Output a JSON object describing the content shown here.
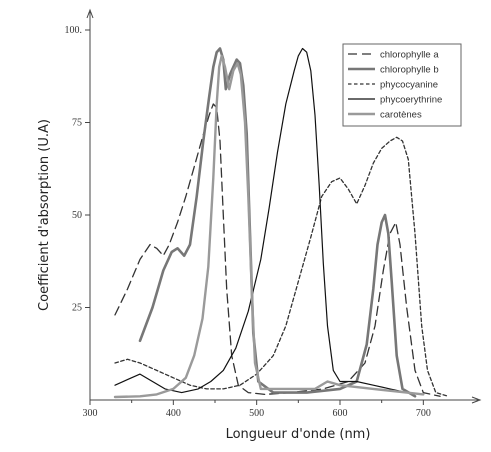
{
  "chart_data": {
    "type": "line",
    "title": "",
    "xlabel": "Longueur d'onde (nm)",
    "ylabel": "Coefficient d'absorption (U.A)",
    "xlim": [
      300,
      750
    ],
    "ylim": [
      0,
      100
    ],
    "xticks": [
      300,
      400,
      500,
      600,
      700
    ],
    "yticks": [
      25,
      50,
      75,
      100
    ],
    "xtick_labels": [
      "300",
      "400",
      "500",
      "600",
      "700"
    ],
    "ytick_labels": [
      "25",
      "50",
      "75",
      "100."
    ],
    "grid": false,
    "legend_position": "top-right",
    "series": [
      {
        "name": "chlorophylle a",
        "style": "long-dash",
        "color": "#333333",
        "points": [
          [
            330,
            23
          ],
          [
            345,
            30
          ],
          [
            360,
            38
          ],
          [
            372,
            42
          ],
          [
            380,
            41
          ],
          [
            388,
            39
          ],
          [
            395,
            42
          ],
          [
            405,
            48
          ],
          [
            415,
            55
          ],
          [
            425,
            63
          ],
          [
            435,
            71
          ],
          [
            443,
            77
          ],
          [
            448,
            80
          ],
          [
            452,
            79
          ],
          [
            456,
            70
          ],
          [
            460,
            50
          ],
          [
            464,
            30
          ],
          [
            470,
            12
          ],
          [
            478,
            4
          ],
          [
            490,
            2
          ],
          [
            510,
            1.5
          ],
          [
            540,
            2
          ],
          [
            580,
            3
          ],
          [
            610,
            5
          ],
          [
            630,
            10
          ],
          [
            642,
            20
          ],
          [
            652,
            35
          ],
          [
            660,
            45
          ],
          [
            667,
            48
          ],
          [
            672,
            42
          ],
          [
            680,
            25
          ],
          [
            690,
            8
          ],
          [
            700,
            2
          ],
          [
            720,
            1
          ]
        ]
      },
      {
        "name": "chlorophylle b",
        "style": "solid-thick",
        "color": "#777777",
        "points": [
          [
            360,
            16
          ],
          [
            375,
            25
          ],
          [
            388,
            35
          ],
          [
            398,
            40
          ],
          [
            405,
            41
          ],
          [
            413,
            39
          ],
          [
            420,
            42
          ],
          [
            428,
            55
          ],
          [
            436,
            70
          ],
          [
            443,
            82
          ],
          [
            448,
            90
          ],
          [
            452,
            94
          ],
          [
            456,
            95
          ],
          [
            460,
            92
          ],
          [
            463,
            84
          ],
          [
            468,
            88
          ],
          [
            472,
            90
          ],
          [
            476,
            92
          ],
          [
            480,
            91
          ],
          [
            484,
            85
          ],
          [
            488,
            72
          ],
          [
            492,
            45
          ],
          [
            496,
            18
          ],
          [
            502,
            5
          ],
          [
            520,
            2
          ],
          [
            560,
            2
          ],
          [
            600,
            3
          ],
          [
            620,
            5
          ],
          [
            632,
            15
          ],
          [
            640,
            30
          ],
          [
            645,
            42
          ],
          [
            650,
            48
          ],
          [
            654,
            50
          ],
          [
            658,
            45
          ],
          [
            662,
            32
          ],
          [
            668,
            12
          ],
          [
            675,
            3
          ],
          [
            690,
            1
          ]
        ]
      },
      {
        "name": "phycocyanine",
        "style": "short-dash",
        "color": "#333333",
        "points": [
          [
            330,
            10
          ],
          [
            345,
            11
          ],
          [
            360,
            10
          ],
          [
            380,
            8
          ],
          [
            400,
            6
          ],
          [
            420,
            4
          ],
          [
            440,
            3
          ],
          [
            460,
            3
          ],
          [
            480,
            4
          ],
          [
            500,
            7
          ],
          [
            520,
            12
          ],
          [
            535,
            20
          ],
          [
            550,
            32
          ],
          [
            565,
            44
          ],
          [
            578,
            55
          ],
          [
            590,
            59
          ],
          [
            600,
            60
          ],
          [
            610,
            57
          ],
          [
            620,
            53
          ],
          [
            630,
            58
          ],
          [
            640,
            64
          ],
          [
            650,
            68
          ],
          [
            660,
            70
          ],
          [
            668,
            71
          ],
          [
            675,
            70
          ],
          [
            682,
            65
          ],
          [
            690,
            45
          ],
          [
            698,
            20
          ],
          [
            705,
            8
          ],
          [
            715,
            2
          ],
          [
            730,
            1
          ]
        ]
      },
      {
        "name": "phycoerythrine",
        "style": "solid-thin",
        "color": "#111111",
        "points": [
          [
            330,
            4
          ],
          [
            345,
            5.5
          ],
          [
            360,
            7
          ],
          [
            375,
            5
          ],
          [
            390,
            3
          ],
          [
            410,
            2
          ],
          [
            430,
            3
          ],
          [
            445,
            5
          ],
          [
            460,
            8
          ],
          [
            475,
            14
          ],
          [
            490,
            24
          ],
          [
            505,
            38
          ],
          [
            515,
            52
          ],
          [
            525,
            67
          ],
          [
            535,
            80
          ],
          [
            545,
            89
          ],
          [
            550,
            93
          ],
          [
            555,
            95
          ],
          [
            560,
            94
          ],
          [
            565,
            89
          ],
          [
            570,
            77
          ],
          [
            575,
            58
          ],
          [
            580,
            37
          ],
          [
            585,
            20
          ],
          [
            592,
            8
          ],
          [
            600,
            5
          ],
          [
            620,
            5
          ],
          [
            640,
            4
          ],
          [
            660,
            3
          ],
          [
            680,
            2
          ],
          [
            700,
            1.5
          ]
        ]
      },
      {
        "name": "carotènes",
        "style": "solid-thick-light",
        "color": "#9a9a9a",
        "points": [
          [
            330,
            0.8
          ],
          [
            360,
            1
          ],
          [
            380,
            1.5
          ],
          [
            400,
            3
          ],
          [
            415,
            6
          ],
          [
            425,
            12
          ],
          [
            435,
            22
          ],
          [
            442,
            36
          ],
          [
            448,
            60
          ],
          [
            452,
            80
          ],
          [
            455,
            90
          ],
          [
            458,
            93
          ],
          [
            462,
            90
          ],
          [
            467,
            84
          ],
          [
            472,
            89
          ],
          [
            477,
            91
          ],
          [
            481,
            88
          ],
          [
            486,
            75
          ],
          [
            490,
            55
          ],
          [
            494,
            30
          ],
          [
            498,
            10
          ],
          [
            505,
            3
          ],
          [
            540,
            3
          ],
          [
            570,
            3
          ],
          [
            585,
            5
          ],
          [
            600,
            4
          ],
          [
            640,
            3
          ],
          [
            680,
            2
          ],
          [
            700,
            1.5
          ]
        ]
      }
    ]
  }
}
